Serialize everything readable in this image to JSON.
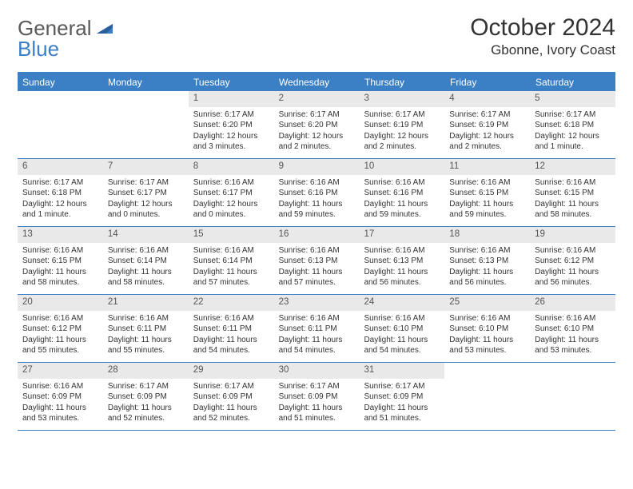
{
  "logo": {
    "line1": "General",
    "line2": "Blue"
  },
  "title": {
    "month": "October 2024",
    "location": "Gbonne, Ivory Coast"
  },
  "colors": {
    "accent": "#3b7fc4",
    "daynum_bg": "#e9e9e9",
    "text": "#333333",
    "logo_gray": "#5a5a5a"
  },
  "weekdays": [
    "Sunday",
    "Monday",
    "Tuesday",
    "Wednesday",
    "Thursday",
    "Friday",
    "Saturday"
  ],
  "weeks": [
    [
      {
        "num": "",
        "lines": [
          "",
          "",
          "",
          ""
        ]
      },
      {
        "num": "",
        "lines": [
          "",
          "",
          "",
          ""
        ]
      },
      {
        "num": "1",
        "lines": [
          "Sunrise: 6:17 AM",
          "Sunset: 6:20 PM",
          "Daylight: 12 hours",
          "and 3 minutes."
        ]
      },
      {
        "num": "2",
        "lines": [
          "Sunrise: 6:17 AM",
          "Sunset: 6:20 PM",
          "Daylight: 12 hours",
          "and 2 minutes."
        ]
      },
      {
        "num": "3",
        "lines": [
          "Sunrise: 6:17 AM",
          "Sunset: 6:19 PM",
          "Daylight: 12 hours",
          "and 2 minutes."
        ]
      },
      {
        "num": "4",
        "lines": [
          "Sunrise: 6:17 AM",
          "Sunset: 6:19 PM",
          "Daylight: 12 hours",
          "and 2 minutes."
        ]
      },
      {
        "num": "5",
        "lines": [
          "Sunrise: 6:17 AM",
          "Sunset: 6:18 PM",
          "Daylight: 12 hours",
          "and 1 minute."
        ]
      }
    ],
    [
      {
        "num": "6",
        "lines": [
          "Sunrise: 6:17 AM",
          "Sunset: 6:18 PM",
          "Daylight: 12 hours",
          "and 1 minute."
        ]
      },
      {
        "num": "7",
        "lines": [
          "Sunrise: 6:17 AM",
          "Sunset: 6:17 PM",
          "Daylight: 12 hours",
          "and 0 minutes."
        ]
      },
      {
        "num": "8",
        "lines": [
          "Sunrise: 6:16 AM",
          "Sunset: 6:17 PM",
          "Daylight: 12 hours",
          "and 0 minutes."
        ]
      },
      {
        "num": "9",
        "lines": [
          "Sunrise: 6:16 AM",
          "Sunset: 6:16 PM",
          "Daylight: 11 hours",
          "and 59 minutes."
        ]
      },
      {
        "num": "10",
        "lines": [
          "Sunrise: 6:16 AM",
          "Sunset: 6:16 PM",
          "Daylight: 11 hours",
          "and 59 minutes."
        ]
      },
      {
        "num": "11",
        "lines": [
          "Sunrise: 6:16 AM",
          "Sunset: 6:15 PM",
          "Daylight: 11 hours",
          "and 59 minutes."
        ]
      },
      {
        "num": "12",
        "lines": [
          "Sunrise: 6:16 AM",
          "Sunset: 6:15 PM",
          "Daylight: 11 hours",
          "and 58 minutes."
        ]
      }
    ],
    [
      {
        "num": "13",
        "lines": [
          "Sunrise: 6:16 AM",
          "Sunset: 6:15 PM",
          "Daylight: 11 hours",
          "and 58 minutes."
        ]
      },
      {
        "num": "14",
        "lines": [
          "Sunrise: 6:16 AM",
          "Sunset: 6:14 PM",
          "Daylight: 11 hours",
          "and 58 minutes."
        ]
      },
      {
        "num": "15",
        "lines": [
          "Sunrise: 6:16 AM",
          "Sunset: 6:14 PM",
          "Daylight: 11 hours",
          "and 57 minutes."
        ]
      },
      {
        "num": "16",
        "lines": [
          "Sunrise: 6:16 AM",
          "Sunset: 6:13 PM",
          "Daylight: 11 hours",
          "and 57 minutes."
        ]
      },
      {
        "num": "17",
        "lines": [
          "Sunrise: 6:16 AM",
          "Sunset: 6:13 PM",
          "Daylight: 11 hours",
          "and 56 minutes."
        ]
      },
      {
        "num": "18",
        "lines": [
          "Sunrise: 6:16 AM",
          "Sunset: 6:13 PM",
          "Daylight: 11 hours",
          "and 56 minutes."
        ]
      },
      {
        "num": "19",
        "lines": [
          "Sunrise: 6:16 AM",
          "Sunset: 6:12 PM",
          "Daylight: 11 hours",
          "and 56 minutes."
        ]
      }
    ],
    [
      {
        "num": "20",
        "lines": [
          "Sunrise: 6:16 AM",
          "Sunset: 6:12 PM",
          "Daylight: 11 hours",
          "and 55 minutes."
        ]
      },
      {
        "num": "21",
        "lines": [
          "Sunrise: 6:16 AM",
          "Sunset: 6:11 PM",
          "Daylight: 11 hours",
          "and 55 minutes."
        ]
      },
      {
        "num": "22",
        "lines": [
          "Sunrise: 6:16 AM",
          "Sunset: 6:11 PM",
          "Daylight: 11 hours",
          "and 54 minutes."
        ]
      },
      {
        "num": "23",
        "lines": [
          "Sunrise: 6:16 AM",
          "Sunset: 6:11 PM",
          "Daylight: 11 hours",
          "and 54 minutes."
        ]
      },
      {
        "num": "24",
        "lines": [
          "Sunrise: 6:16 AM",
          "Sunset: 6:10 PM",
          "Daylight: 11 hours",
          "and 54 minutes."
        ]
      },
      {
        "num": "25",
        "lines": [
          "Sunrise: 6:16 AM",
          "Sunset: 6:10 PM",
          "Daylight: 11 hours",
          "and 53 minutes."
        ]
      },
      {
        "num": "26",
        "lines": [
          "Sunrise: 6:16 AM",
          "Sunset: 6:10 PM",
          "Daylight: 11 hours",
          "and 53 minutes."
        ]
      }
    ],
    [
      {
        "num": "27",
        "lines": [
          "Sunrise: 6:16 AM",
          "Sunset: 6:09 PM",
          "Daylight: 11 hours",
          "and 53 minutes."
        ]
      },
      {
        "num": "28",
        "lines": [
          "Sunrise: 6:17 AM",
          "Sunset: 6:09 PM",
          "Daylight: 11 hours",
          "and 52 minutes."
        ]
      },
      {
        "num": "29",
        "lines": [
          "Sunrise: 6:17 AM",
          "Sunset: 6:09 PM",
          "Daylight: 11 hours",
          "and 52 minutes."
        ]
      },
      {
        "num": "30",
        "lines": [
          "Sunrise: 6:17 AM",
          "Sunset: 6:09 PM",
          "Daylight: 11 hours",
          "and 51 minutes."
        ]
      },
      {
        "num": "31",
        "lines": [
          "Sunrise: 6:17 AM",
          "Sunset: 6:09 PM",
          "Daylight: 11 hours",
          "and 51 minutes."
        ]
      },
      {
        "num": "",
        "lines": [
          "",
          "",
          "",
          ""
        ]
      },
      {
        "num": "",
        "lines": [
          "",
          "",
          "",
          ""
        ]
      }
    ]
  ]
}
